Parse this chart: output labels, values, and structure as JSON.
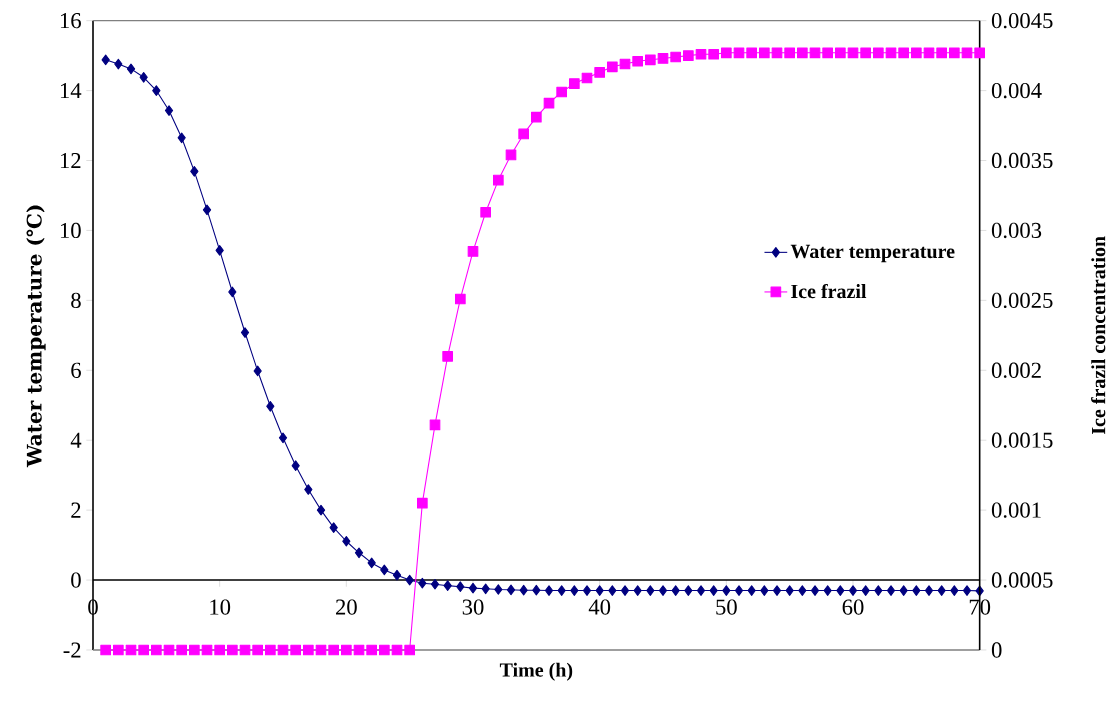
{
  "chart_data": {
    "type": "line",
    "xlabel": "Time (h)",
    "ylabel": "Water temperature (℃)",
    "y2label": "Ice frazil concentration",
    "x": [
      1,
      2,
      3,
      4,
      5,
      6,
      7,
      8,
      9,
      10,
      11,
      12,
      13,
      14,
      15,
      16,
      17,
      18,
      19,
      20,
      21,
      22,
      23,
      24,
      25,
      26,
      27,
      28,
      29,
      30,
      31,
      32,
      33,
      34,
      35,
      36,
      37,
      38,
      39,
      40,
      41,
      42,
      43,
      44,
      45,
      46,
      47,
      48,
      49,
      50,
      51,
      52,
      53,
      54,
      55,
      56,
      57,
      58,
      59,
      60,
      61,
      62,
      63,
      64,
      65,
      66,
      67,
      68,
      69,
      70
    ],
    "series": [
      {
        "name": "Water temperature",
        "color": "#000080",
        "marker": "diamond",
        "values": [
          14.88,
          14.76,
          14.62,
          14.38,
          14.0,
          13.43,
          12.65,
          11.69,
          10.59,
          9.43,
          8.24,
          7.08,
          5.98,
          4.97,
          4.07,
          3.27,
          2.59,
          2.0,
          1.5,
          1.11,
          0.78,
          0.49,
          0.29,
          0.14,
          0.0,
          -0.09,
          -0.12,
          -0.16,
          -0.19,
          -0.23,
          -0.25,
          -0.27,
          -0.28,
          -0.29,
          -0.29,
          -0.3,
          -0.3,
          -0.3,
          -0.3,
          -0.3,
          -0.3,
          -0.3,
          -0.3,
          -0.3,
          -0.3,
          -0.3,
          -0.3,
          -0.3,
          -0.3,
          -0.3,
          -0.3,
          -0.3,
          -0.3,
          -0.3,
          -0.3,
          -0.3,
          -0.3,
          -0.3,
          -0.3,
          -0.3,
          -0.3,
          -0.3,
          -0.3,
          -0.3,
          -0.3,
          -0.3,
          -0.3,
          -0.3,
          -0.3,
          -0.31
        ]
      },
      {
        "name": "Ice frazil",
        "color": "#ff00ff",
        "marker": "square",
        "axis": "y2",
        "values": [
          0,
          0,
          0,
          0,
          0,
          0,
          0,
          0,
          0,
          0,
          0,
          0,
          0,
          0,
          0,
          0,
          0,
          0,
          0,
          0,
          0,
          0,
          0,
          0,
          0,
          0.00105,
          0.00161,
          0.0021,
          0.00251,
          0.00285,
          0.00313,
          0.00336,
          0.00354,
          0.00369,
          0.00381,
          0.00391,
          0.00399,
          0.00405,
          0.00409,
          0.00413,
          0.00417,
          0.00419,
          0.00421,
          0.00422,
          0.00423,
          0.00424,
          0.00425,
          0.00426,
          0.00426,
          0.00427,
          0.00427,
          0.00427,
          0.00427,
          0.00427,
          0.00427,
          0.00427,
          0.00427,
          0.00427,
          0.00427,
          0.00427,
          0.00427,
          0.00427,
          0.00427,
          0.00427,
          0.00427,
          0.00427,
          0.00427,
          0.00427,
          0.00427,
          0.00427
        ]
      }
    ],
    "xlim": [
      0,
      70
    ],
    "xticks": [
      0,
      10,
      20,
      30,
      40,
      50,
      60,
      70
    ],
    "ylim": [
      -2,
      16
    ],
    "yticks": [
      -2,
      0,
      2,
      4,
      6,
      8,
      10,
      12,
      14,
      16
    ],
    "y2lim": [
      0,
      0.0045
    ],
    "y2ticks": [
      0,
      0.0005,
      0.001,
      0.0015,
      0.002,
      0.0025,
      0.003,
      0.0035,
      0.004,
      0.0045
    ],
    "legend": "right"
  }
}
